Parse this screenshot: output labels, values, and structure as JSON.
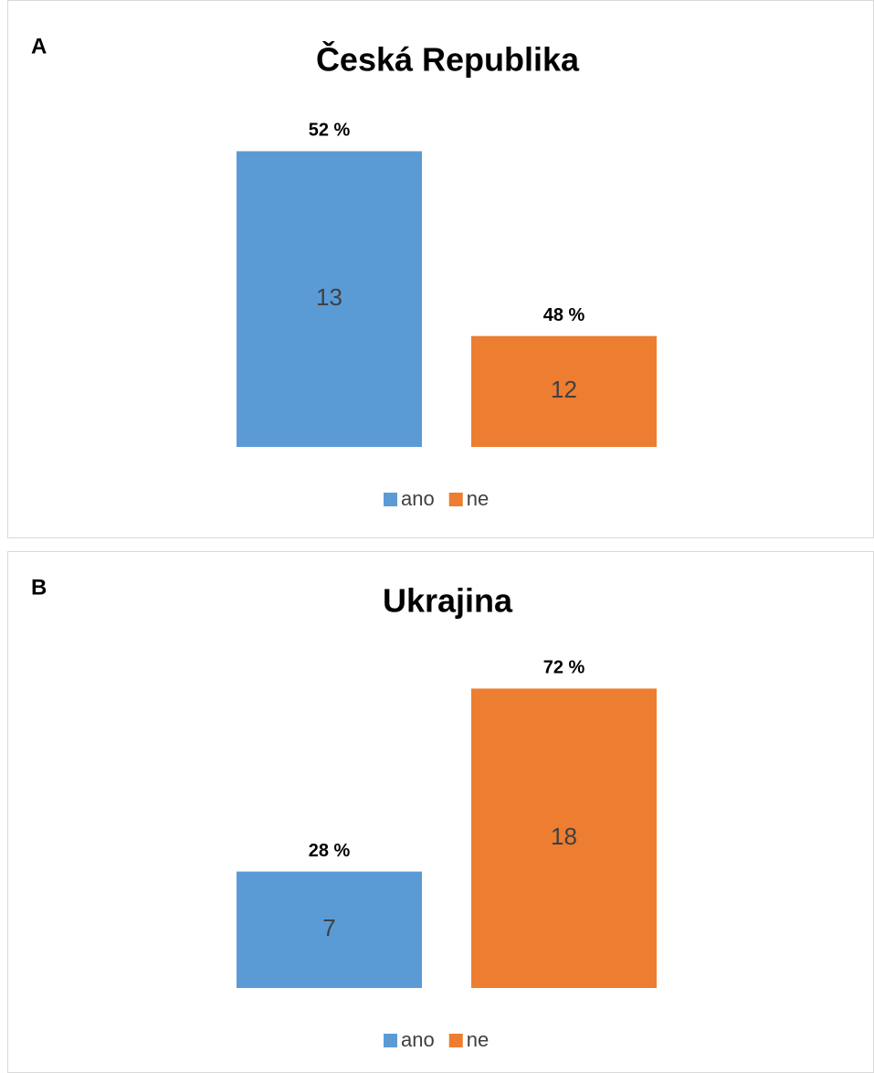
{
  "chart_data": [
    {
      "type": "bar",
      "panel_label": "A",
      "title": "Česká Republika",
      "series": [
        {
          "name": "ano",
          "color": "#5b9bd5",
          "values": [
            13
          ],
          "percent_labels": [
            "52 %"
          ]
        },
        {
          "name": "ne",
          "color": "#ed7d31",
          "values": [
            12
          ],
          "percent_labels": [
            "48 %"
          ]
        }
      ],
      "ylim": [
        11.4,
        13.2
      ]
    },
    {
      "type": "bar",
      "panel_label": "B",
      "title": "Ukrajina",
      "series": [
        {
          "name": "ano",
          "color": "#5b9bd5",
          "values": [
            7
          ],
          "percent_labels": [
            "28 %"
          ]
        },
        {
          "name": "ne",
          "color": "#ed7d31",
          "values": [
            18
          ],
          "percent_labels": [
            "72 %"
          ]
        }
      ],
      "ylim": [
        0,
        20
      ]
    }
  ]
}
